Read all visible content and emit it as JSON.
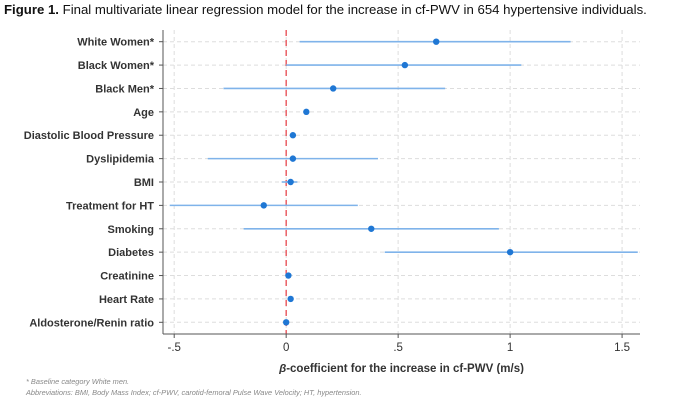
{
  "caption": {
    "label": "Figure 1.",
    "text": "Final multivariate linear regression model for the increase in cf-PWV in 654 hypertensive individuals."
  },
  "chart_data": {
    "type": "forest",
    "title": "Final multivariate linear regression model for the increase in cf-PWV in 654 hypertensive individuals.",
    "xlabel_symbol": "β",
    "xlabel": "-coefficient for the increase in cf-PWV (m/s)",
    "ylabel": "",
    "xlim": [
      -0.55,
      1.58
    ],
    "xticks": [
      -0.5,
      0,
      0.5,
      1,
      1.5
    ],
    "xtick_labels": [
      "-.5",
      "0",
      ".5",
      "1",
      "1.5"
    ],
    "reference_line": 0,
    "grid": true,
    "colors": {
      "estimate": "#1f77d4",
      "interval": "#7fb3ea",
      "reference": "#e8484f",
      "grid": "#dddddd"
    },
    "categories": [
      "White Women*",
      "Black Women*",
      "Black Men*",
      "Age",
      "Diastolic Blood Pressure",
      "Dyslipidemia",
      "BMI",
      "Treatment for HT",
      "Smoking",
      "Diabetes",
      "Creatinine",
      "Heart Rate",
      "Aldosterone/Renin ratio"
    ],
    "estimates": [
      0.67,
      0.53,
      0.21,
      0.09,
      0.03,
      0.03,
      0.02,
      -0.1,
      0.38,
      1.0,
      0.01,
      0.02,
      0.0
    ],
    "ci_lower": [
      0.06,
      0.0,
      -0.28,
      0.08,
      0.02,
      -0.35,
      -0.02,
      -0.52,
      -0.19,
      0.44,
      0.0,
      0.01,
      -0.01
    ],
    "ci_upper": [
      1.27,
      1.05,
      0.71,
      0.1,
      0.04,
      0.41,
      0.05,
      0.32,
      0.95,
      1.57,
      0.02,
      0.03,
      0.01
    ]
  },
  "footnotes": {
    "line1": "* Baseline category White men.",
    "line2": "Abbreviations: BMI, Body Mass Index; cf-PWV, carotid-femoral Pulse Wave Velocity; HT, hypertension."
  }
}
